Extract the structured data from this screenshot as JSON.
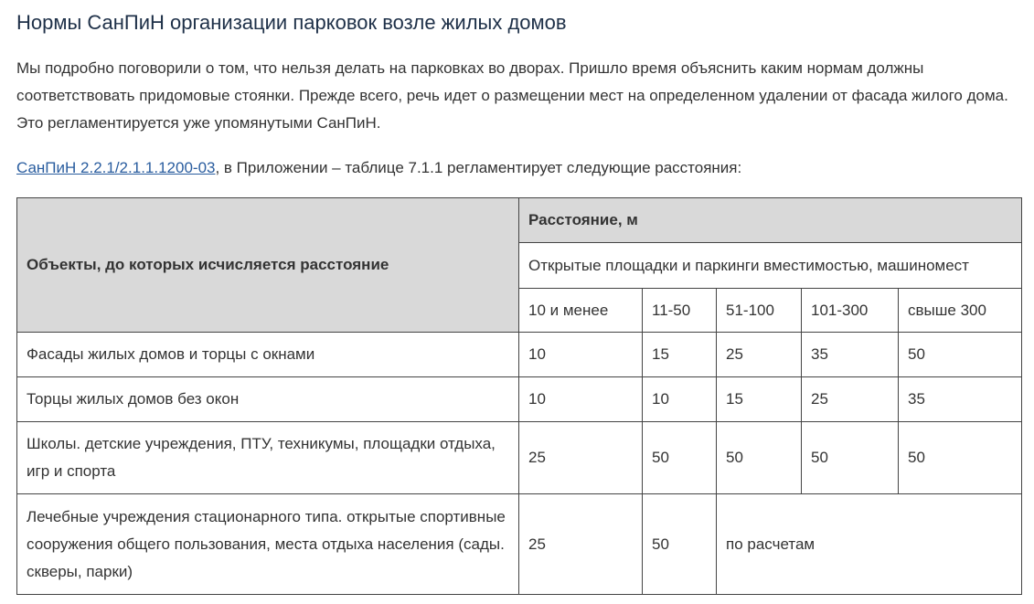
{
  "heading": "Нормы СанПиН организации парковок возле жилых домов",
  "intro": "Мы подробно поговорили о том, что нельзя делать на парковках во дворах. Пришло время объяснить каким нормам должны соответствовать придомовые стоянки. Прежде всего, речь идет о размещении мест на определенном удалении от фасада жилого дома. Это регламентируется уже упомянутыми СанПиН.",
  "source": {
    "link": "СанПиН 2.2.1/2.1.1.1200-03",
    "text": ", в Приложении – таблице 7.1.1 регламентирует следующие расстояния:"
  },
  "table": {
    "header": {
      "objects": "Объекты, до которых исчисляется расстояние",
      "distance": "Расстояние, м",
      "group": "Открытые площадки и паркинги вместимостью, машиномест",
      "columns": [
        "10 и менее",
        "11-50",
        "51-100",
        "101-300",
        "свыше 300"
      ]
    },
    "rows": [
      [
        "Фасады жилых домов и торцы с окнами",
        10,
        15,
        25,
        35,
        50
      ],
      [
        "Торцы жилых домов без окон",
        10,
        10,
        15,
        25,
        35
      ],
      [
        "Школы. детские учреждения, ПТУ, техникумы, площадки отдыха, игр и спорта",
        25,
        50,
        50,
        50,
        50
      ],
      [
        "Лечебные учреждения стационарного типа. открытые спортивные сооружения общего пользования, места отдыха населения (сады. скверы, парки)",
        25,
        50,
        "по расчетам"
      ]
    ]
  }
}
